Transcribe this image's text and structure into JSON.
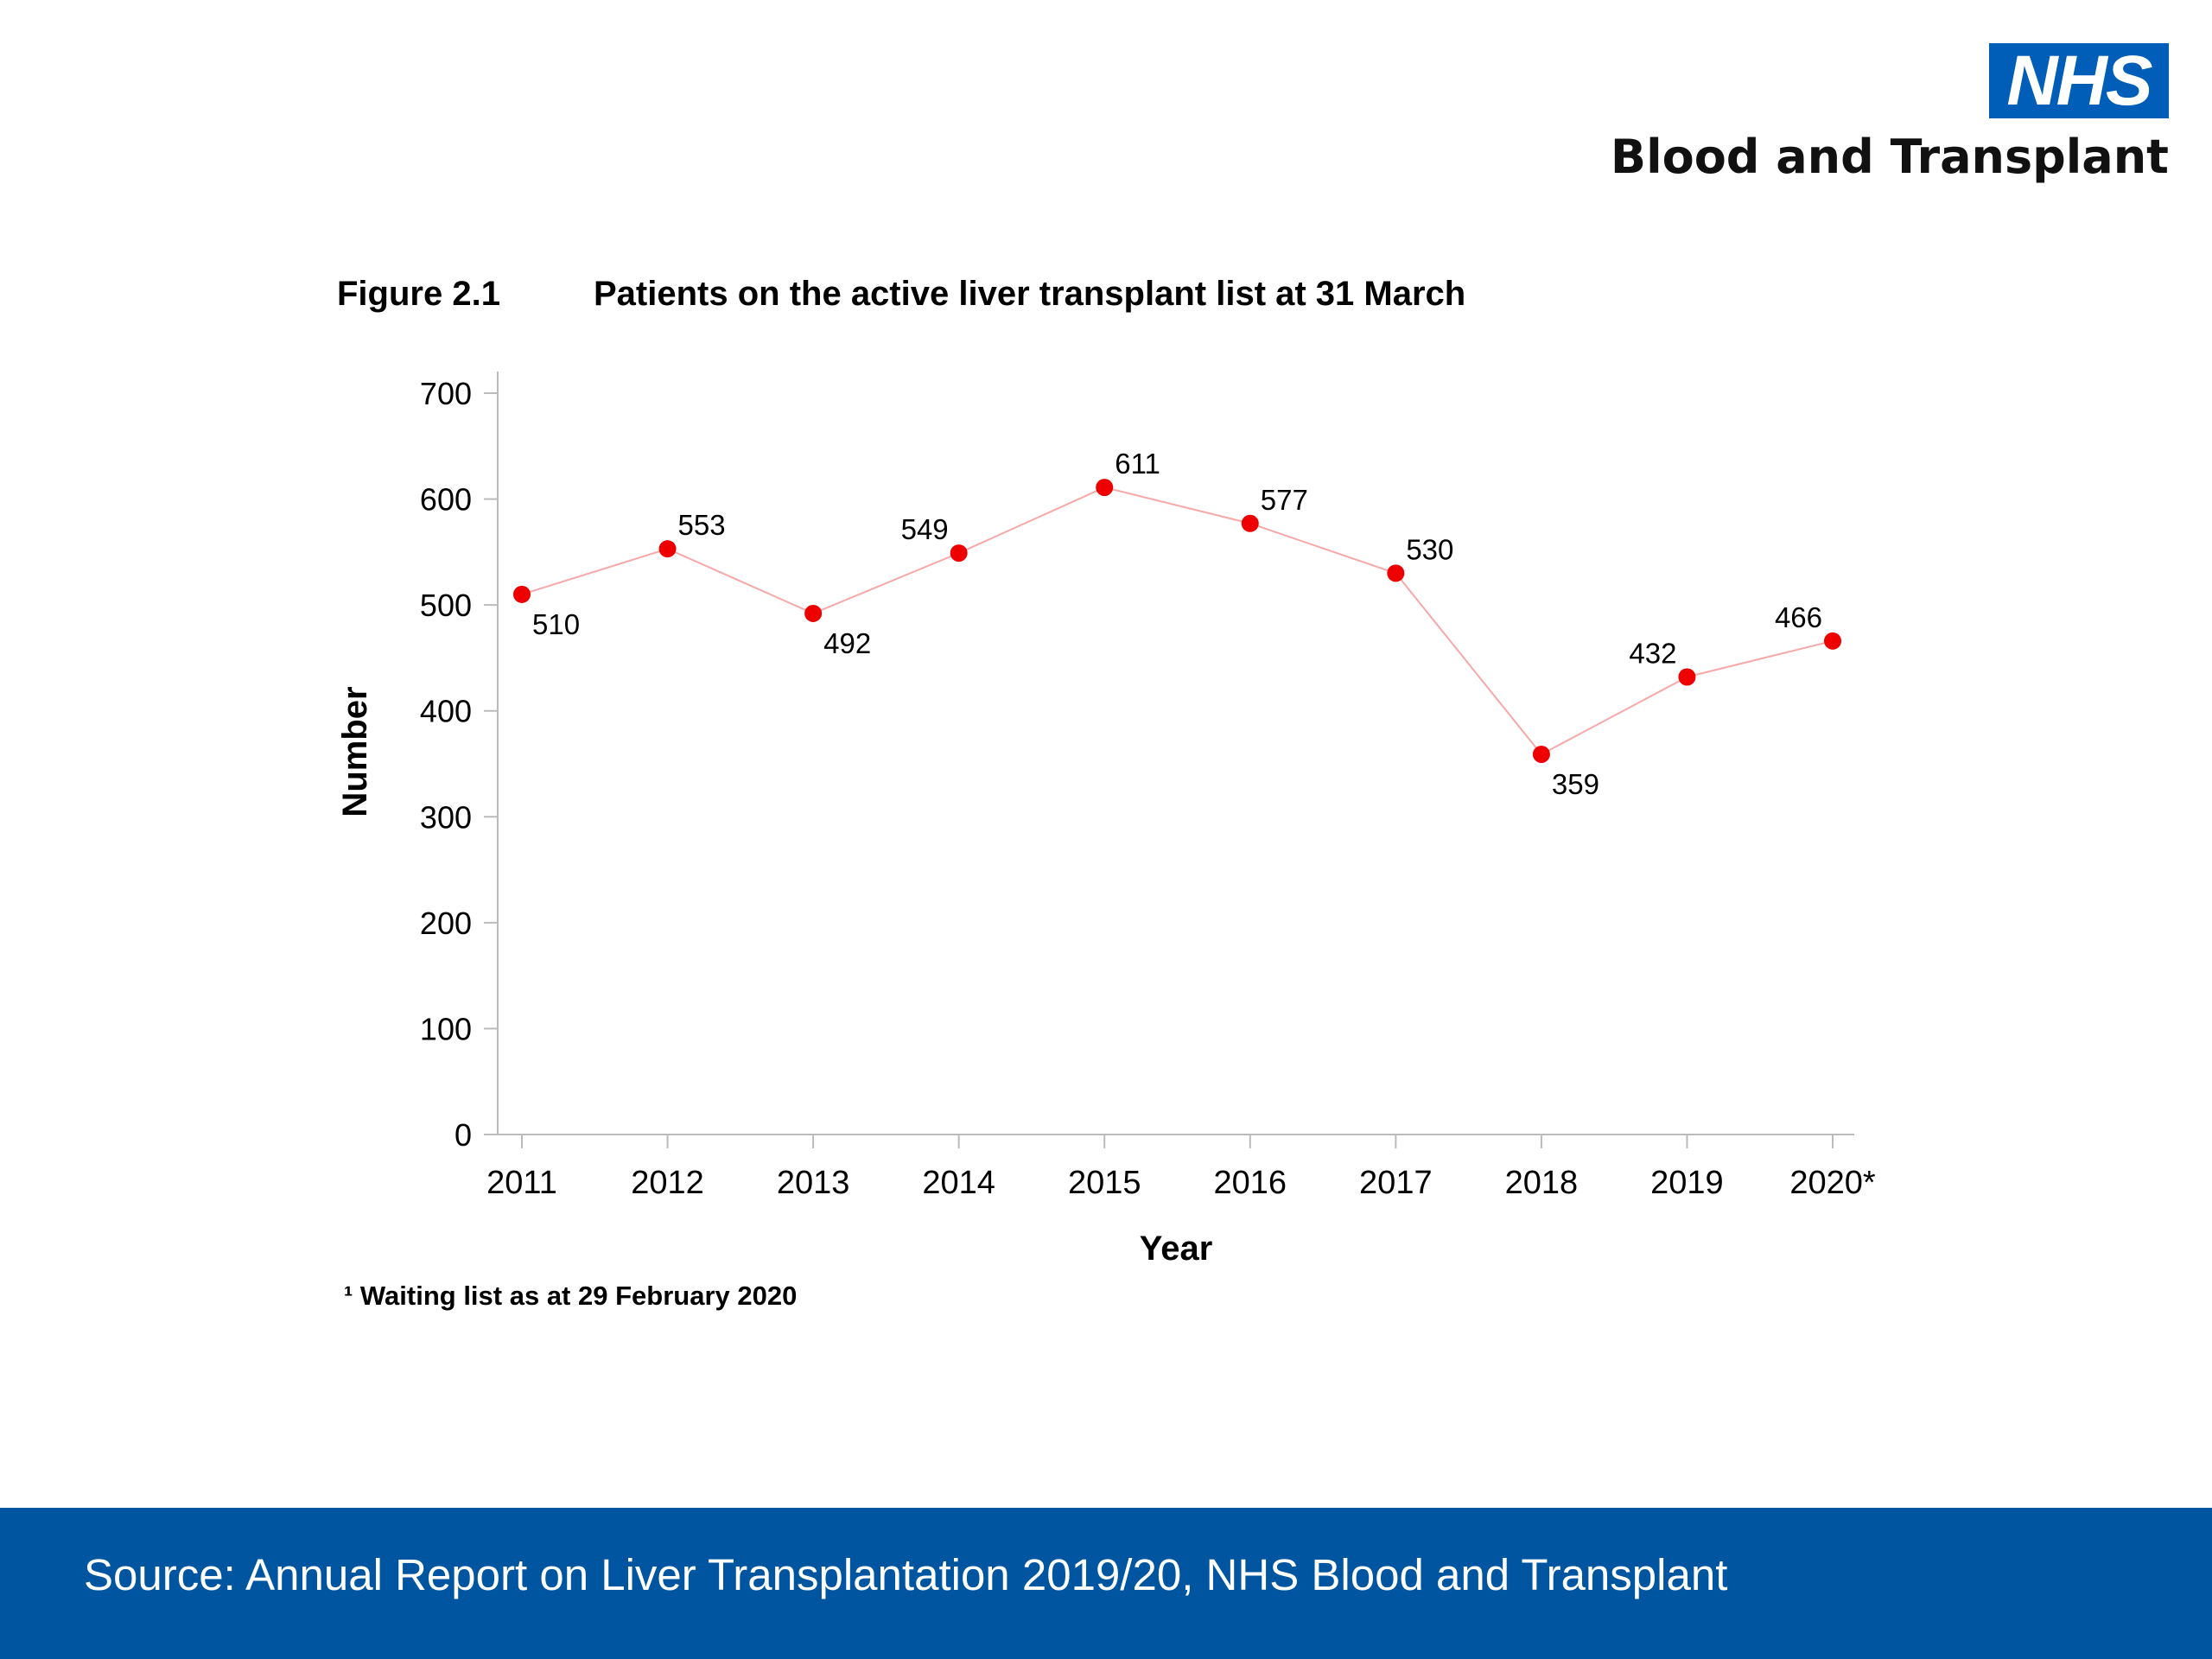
{
  "logo": {
    "mark": "NHS",
    "name": "Blood and Transplant"
  },
  "figure": {
    "number": "Figure 2.1",
    "title": "Patients on the active liver transplant list at 31 March",
    "footnote": "¹ Waiting list as at 29 February 2020"
  },
  "source": "Source: Annual Report on Liver Transplantation 2019/20, NHS Blood and Transplant",
  "colors": {
    "brand": "#005EB8",
    "footer_bar": "#0055A0",
    "series_point": "#EE0000",
    "series_line": "#F7A8A8"
  },
  "chart_data": {
    "type": "line",
    "xlabel": "Year",
    "ylabel": "Number",
    "categories": [
      "2011",
      "2012",
      "2013",
      "2014",
      "2015",
      "2016",
      "2017",
      "2018",
      "2019",
      "2020*"
    ],
    "series": [
      {
        "values": [
          510,
          553,
          492,
          549,
          611,
          577,
          530,
          359,
          432,
          466
        ],
        "label_positions": [
          "below-right",
          "above-right",
          "below-right",
          "above-left",
          "above-right",
          "above-right",
          "above-right",
          "below-right",
          "above-left",
          "above-left"
        ]
      }
    ],
    "ylim": [
      0,
      700
    ],
    "yticks": [
      0,
      100,
      200,
      300,
      400,
      500,
      600,
      700
    ],
    "grid": false,
    "legend": "none"
  }
}
